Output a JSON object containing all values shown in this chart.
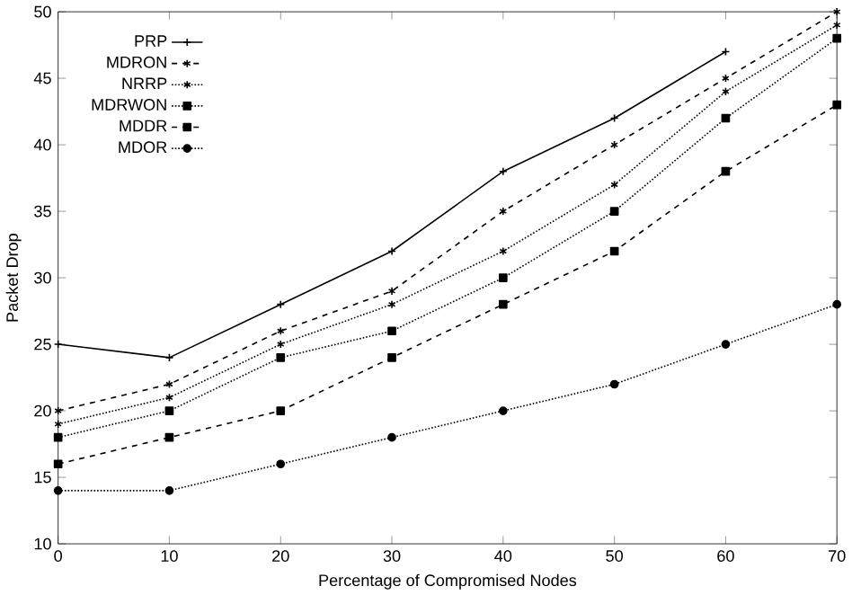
{
  "chart_data": {
    "type": "line",
    "xlabel": "Percentage of Compromised Nodes",
    "ylabel": "Packet Drop",
    "x": [
      0,
      10,
      20,
      30,
      40,
      50,
      60,
      70
    ],
    "series": [
      {
        "name": "PRP",
        "color": "#000000",
        "marker": "cross",
        "line_style": "solid",
        "values": [
          25,
          24,
          28,
          32,
          38,
          42,
          47,
          null
        ]
      },
      {
        "name": "MDRON",
        "color": "#000000",
        "marker": "cross",
        "line_style": "dashed",
        "values": [
          20,
          22,
          26,
          29,
          35,
          40,
          45,
          50
        ]
      },
      {
        "name": "NRRP",
        "color": "#000000",
        "marker": "cross",
        "line_style": "dotted",
        "values": [
          19,
          21,
          25,
          28,
          32,
          37,
          44,
          49
        ]
      },
      {
        "name": "MDRWON",
        "color": "#000000",
        "marker": "square",
        "line_style": "dotted",
        "values": [
          18,
          20,
          24,
          26,
          30,
          35,
          42,
          48
        ]
      },
      {
        "name": "MDDR",
        "color": "#000000",
        "marker": "square",
        "line_style": "dashed",
        "values": [
          16,
          18,
          20,
          24,
          28,
          32,
          38,
          43
        ]
      },
      {
        "name": "MDOR",
        "color": "#000000",
        "marker": "circle",
        "line_style": "dotted",
        "values": [
          14,
          14,
          16,
          18,
          20,
          22,
          25,
          28
        ]
      }
    ],
    "xlim": [
      0,
      70
    ],
    "ylim": [
      10,
      50
    ],
    "xticks": [
      0,
      10,
      20,
      30,
      40,
      50,
      60,
      70
    ],
    "yticks": [
      10,
      15,
      20,
      25,
      30,
      35,
      40,
      45,
      50
    ],
    "grid": false,
    "legend": "top left"
  }
}
